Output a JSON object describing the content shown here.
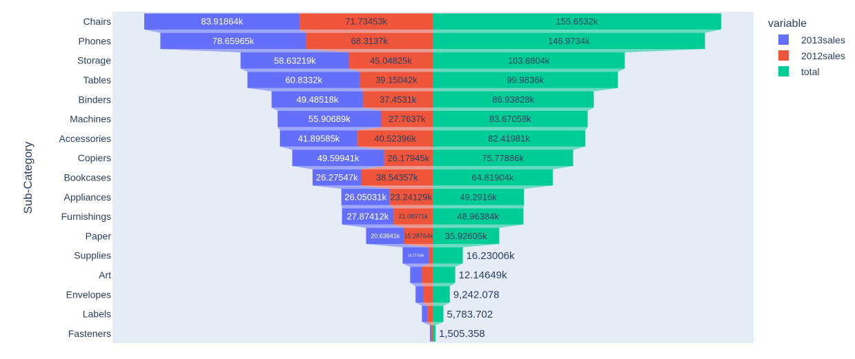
{
  "chart_data": {
    "type": "funnel",
    "orientation": "horizontal-stacked",
    "ylabel": "Sub-Category",
    "legend_title": "variable",
    "legend_position": "top-right",
    "categories": [
      "Chairs",
      "Phones",
      "Storage",
      "Tables",
      "Binders",
      "Machines",
      "Accessories",
      "Copiers",
      "Bookcases",
      "Appliances",
      "Furnishings",
      "Paper",
      "Supplies",
      "Art",
      "Envelopes",
      "Labels",
      "Fasteners"
    ],
    "series": [
      {
        "name": "2013sales",
        "color": "#636efa",
        "values": [
          83918.64,
          78659.65,
          58632.19,
          60833.2,
          49485.18,
          55906.89,
          41895.85,
          49599.41,
          26275.47,
          26050.31,
          27874.12,
          20638.41,
          14277.58,
          6400,
          4200,
          2900,
          700
        ],
        "labels": [
          "83.91864k",
          "78.65965k",
          "58.63219k",
          "60.8332k",
          "49.48518k",
          "55.90689k",
          "41.89585k",
          "49.59941k",
          "26.27547k",
          "26.05031k",
          "27.87412k",
          "20.63841k",
          "14.27758k",
          "",
          "",
          "",
          ""
        ]
      },
      {
        "name": "2012sales",
        "color": "#ef553b",
        "values": [
          71734.53,
          68313.7,
          45048.25,
          39150.42,
          37453.1,
          27763.7,
          40523.96,
          26179.45,
          38543.57,
          23241.29,
          21089.71,
          15287.64,
          1953.48,
          5746.49,
          5042.078,
          2883.702,
          805.358
        ],
        "labels": [
          "71.73453k",
          "68.3137k",
          "45.04825k",
          "39.15042k",
          "37.4531k",
          "27.7637k",
          "40.52396k",
          "26.17945k",
          "38.54357k",
          "23.24129k",
          "21.08971k",
          "15.28764k",
          "",
          "",
          "",
          "",
          ""
        ]
      },
      {
        "name": "total",
        "color": "#00cc96",
        "values": [
          155653.2,
          146973.4,
          103680.4,
          99983.6,
          86938.28,
          83670.58,
          82419.81,
          75778.86,
          64819.04,
          49291.6,
          48963.84,
          35926.05,
          16230.06,
          12146.49,
          9242.078,
          5783.702,
          1505.358
        ],
        "labels": [
          "155.6532k",
          "146.9734k",
          "103.6804k",
          "99.9836k",
          "86.93828k",
          "83.67058k",
          "82.41981k",
          "75.77886k",
          "64.81904k",
          "49.2916k",
          "48.96384k",
          "35.92605k",
          "16.23006k",
          "12.14649k",
          "9,242.078",
          "5,783.702",
          "1,505.358"
        ]
      }
    ],
    "grid": false
  }
}
